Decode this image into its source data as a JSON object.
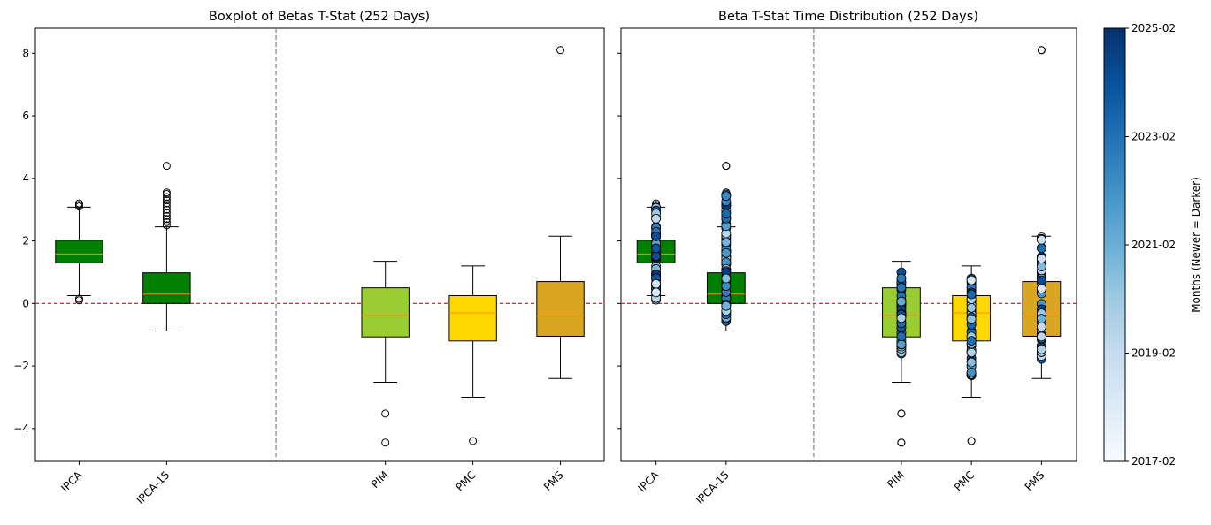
{
  "colors": {
    "IPCA": "#008000",
    "IPCA-15": "#008000",
    "PIM": "#9acd32",
    "PMC": "#ffd700",
    "PMS": "#daa520",
    "median": "#ff8c00",
    "zero_line": "#ff0000",
    "separator": "#808080"
  },
  "chart_data": [
    {
      "type": "box",
      "title": "Boxplot of Betas T-Stat (252 Days)",
      "xlabel": "",
      "ylabel": "",
      "ylim": [
        -5.05,
        8.8
      ],
      "yticks": [
        -4,
        -2,
        0,
        2,
        4,
        6,
        8
      ],
      "categories": [
        "IPCA",
        "IPCA-15",
        "PIM",
        "PMC",
        "PMS"
      ],
      "positions": [
        1,
        2,
        4.5,
        5.5,
        6.5
      ],
      "separator_x": 3.25,
      "reference_line_y": 0,
      "boxes": [
        {
          "name": "IPCA",
          "whisker_low": 0.25,
          "q1": 1.3,
          "median": 1.58,
          "q3": 2.02,
          "whisker_high": 3.08,
          "outliers": [
            0.1,
            0.15,
            3.1,
            3.15,
            3.2
          ]
        },
        {
          "name": "IPCA-15",
          "whisker_low": -0.88,
          "q1": 0.0,
          "median": 0.3,
          "q3": 0.98,
          "whisker_high": 2.45,
          "outliers": [
            2.5,
            2.6,
            2.7,
            2.8,
            2.9,
            3.0,
            3.1,
            3.2,
            3.3,
            3.4,
            3.5,
            3.55,
            4.4
          ]
        },
        {
          "name": "PIM",
          "whisker_low": -2.52,
          "q1": -1.07,
          "median": -0.38,
          "q3": 0.5,
          "whisker_high": 1.35,
          "outliers": [
            -3.52,
            -4.45
          ]
        },
        {
          "name": "PMC",
          "whisker_low": -3.0,
          "q1": -1.2,
          "median": -0.3,
          "q3": 0.25,
          "whisker_high": 1.2,
          "outliers": [
            -4.4
          ]
        },
        {
          "name": "PMS",
          "whisker_low": -2.4,
          "q1": -1.05,
          "median": -0.4,
          "q3": 0.7,
          "whisker_high": 2.15,
          "outliers": [
            8.1
          ]
        }
      ]
    },
    {
      "type": "scatter",
      "title": "Beta T-Stat Time Distribution (252 Days)",
      "xlabel": "",
      "ylabel": "",
      "ylim": [
        -5.05,
        8.8
      ],
      "categories": [
        "IPCA",
        "IPCA-15",
        "PIM",
        "PMC",
        "PMS"
      ],
      "overlay_on_boxplot": true,
      "point_color_by": "month (newer = darker)",
      "point_ranges": [
        {
          "name": "IPCA",
          "min": 0.1,
          "max": 3.2,
          "count": 60
        },
        {
          "name": "IPCA-15",
          "min": -0.6,
          "max": 3.6,
          "count": 85
        },
        {
          "name": "PIM",
          "min": -1.6,
          "max": 1.1,
          "count": 55
        },
        {
          "name": "PMC",
          "min": -2.3,
          "max": 0.9,
          "count": 60
        },
        {
          "name": "PMS",
          "min": -1.95,
          "max": 2.15,
          "count": 60
        }
      ],
      "extra_points": [
        {
          "name": "IPCA-15",
          "y": 4.4
        },
        {
          "name": "PIM",
          "y": -3.52
        },
        {
          "name": "PIM",
          "y": -4.45
        },
        {
          "name": "PMC",
          "y": -4.4
        },
        {
          "name": "PMS",
          "y": 8.1
        }
      ]
    }
  ],
  "colorbar": {
    "label": "Months (Newer = Darker)",
    "ticks": [
      "2017-02",
      "2019-02",
      "2021-02",
      "2023-02",
      "2025-02"
    ],
    "colormap": [
      "#f7fbff",
      "#deebf7",
      "#c6dbef",
      "#9ecae1",
      "#6baed6",
      "#4292c6",
      "#2171b5",
      "#08519c",
      "#08306b"
    ]
  }
}
